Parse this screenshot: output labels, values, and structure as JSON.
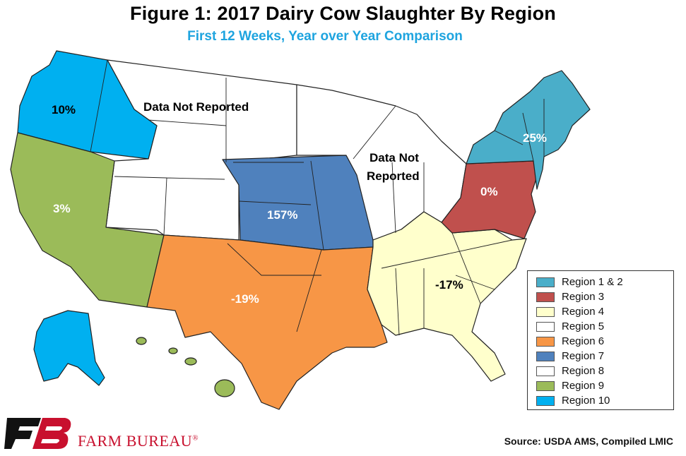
{
  "header": {
    "title": "Figure 1: 2017 Dairy Cow Slaughter By Region",
    "subtitle": "First 12 Weeks, Year over Year Comparison"
  },
  "map": {
    "labels": {
      "region10": "10%",
      "region8_nr": "Data Not Reported",
      "region5_nr_line1": "Data Not",
      "region5_nr_line2": "Reported",
      "region12": "25%",
      "region3": "0%",
      "region9": "3%",
      "region7": "157%",
      "region6": "-19%",
      "region4": "-17%"
    },
    "colors": {
      "region1_2": "#4aaec9",
      "region3": "#c0504d",
      "region4": "#ffffcc",
      "region5": "#ffffff",
      "region6": "#f79646",
      "region7": "#4f81bd",
      "region8": "#ffffff",
      "region9": "#9bbb59",
      "region10": "#00b0f0"
    }
  },
  "legend": {
    "items": [
      {
        "label": "Region 1 & 2",
        "color": "#4aaec9"
      },
      {
        "label": "Region 3",
        "color": "#c0504d"
      },
      {
        "label": "Region 4",
        "color": "#ffffcc"
      },
      {
        "label": "Region 5",
        "color": "#ffffff"
      },
      {
        "label": "Region 6",
        "color": "#f79646"
      },
      {
        "label": "Region 7",
        "color": "#4f81bd"
      },
      {
        "label": "Region 8",
        "color": "#ffffff"
      },
      {
        "label": "Region 9",
        "color": "#9bbb59"
      },
      {
        "label": "Region 10",
        "color": "#00b0f0"
      }
    ]
  },
  "footer": {
    "brand": "FARM BUREAU",
    "brand_mark": "®",
    "source": "Source: USDA AMS, Compiled LMIC"
  }
}
